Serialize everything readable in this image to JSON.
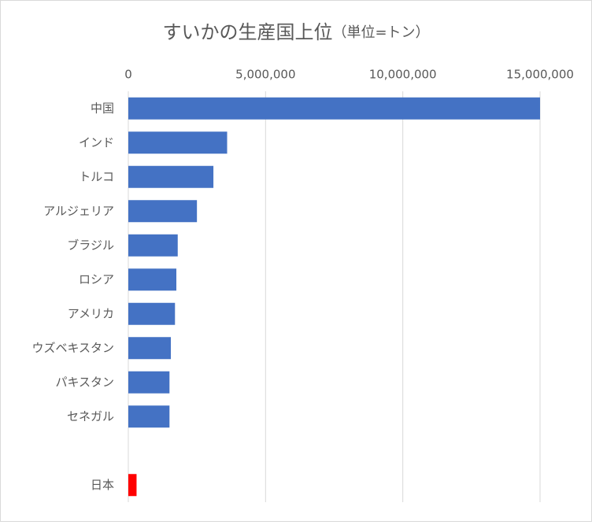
{
  "chart_data": {
    "type": "barh",
    "title": "すいかの生産国上位",
    "title_unit": "（単位=トン）",
    "categories": [
      "中国",
      "インド",
      "トルコ",
      "アルジェリア",
      "ブラジル",
      "ロシア",
      "アメリカ",
      "ウズベキスタン",
      "パキスタン",
      "セネガル",
      null,
      "日本"
    ],
    "values": [
      15000000,
      3600000,
      3100000,
      2500000,
      1800000,
      1750000,
      1700000,
      1550000,
      1500000,
      1500000,
      null,
      300000
    ],
    "colors": [
      "#4472c4",
      "#4472c4",
      "#4472c4",
      "#4472c4",
      "#4472c4",
      "#4472c4",
      "#4472c4",
      "#4472c4",
      "#4472c4",
      "#4472c4",
      null,
      "#ff0000"
    ],
    "xlim": [
      0,
      15000000
    ],
    "xticks": [
      0,
      {
        "value": 5000000,
        "label": "5,000,000"
      },
      {
        "value": 10000000,
        "label": "10,000,000"
      },
      {
        "value": 15000000,
        "label": "15,000,000"
      }
    ],
    "grid": true
  }
}
